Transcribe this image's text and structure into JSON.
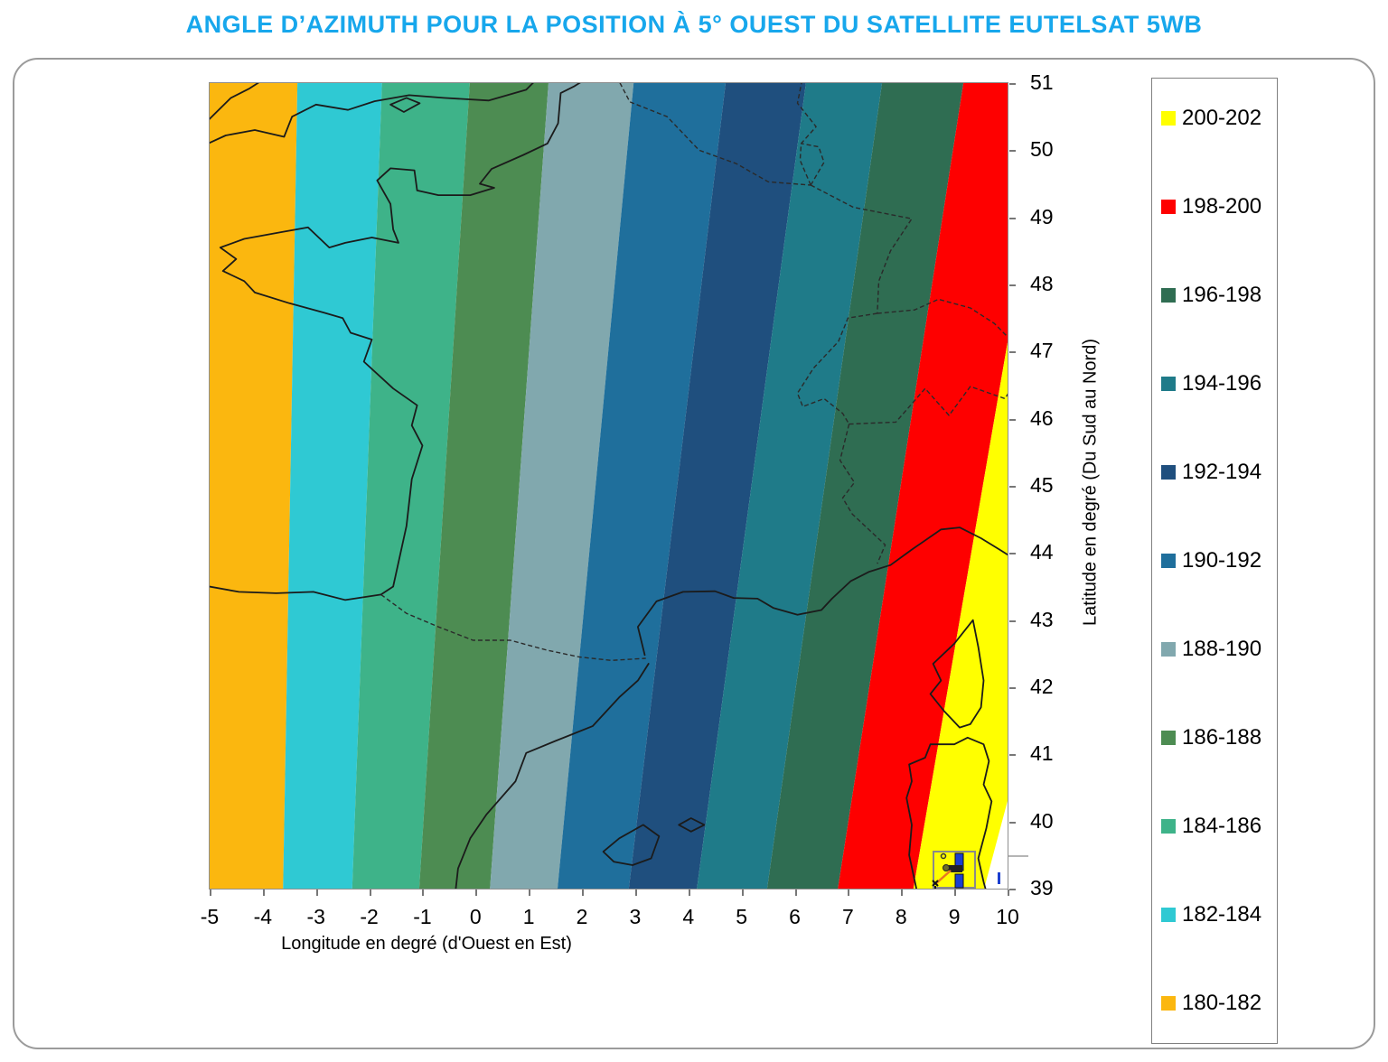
{
  "title": "ANGLE D’AZIMUTH POUR LA POSITION À 5° OUEST DU SATELLITE EUTELSAT 5WB",
  "title_color": "#17A7EC",
  "chart_data": {
    "type": "heatmap",
    "subtype": "filled-contour-map-over-france",
    "title": "ANGLE D’AZIMUTH POUR LA POSITION À 5° OUEST DU SATELLITE EUTELSAT 5WB",
    "xlabel": "Longitude en degré (d'Ouest en Est)",
    "ylabel": "Latitude en degré (Du Sud au Nord)",
    "xlim": [
      -5,
      10
    ],
    "ylim": [
      39,
      51
    ],
    "xticks": [
      -5,
      -4,
      -3,
      -2,
      -1,
      0,
      1,
      2,
      3,
      4,
      5,
      6,
      7,
      8,
      9,
      10
    ],
    "yticks": [
      39,
      40,
      41,
      42,
      43,
      44,
      45,
      46,
      47,
      48,
      49,
      50,
      51
    ],
    "grid": false,
    "legend_position": "right",
    "legend": [
      {
        "label": "200-202",
        "color": "#FFFF00"
      },
      {
        "label": "198-200",
        "color": "#FE0000"
      },
      {
        "label": "196-198",
        "color": "#2F6D52"
      },
      {
        "label": "194-196",
        "color": "#1F7B89"
      },
      {
        "label": "192-194",
        "color": "#1F4F7E"
      },
      {
        "label": "190-192",
        "color": "#1F6F9C"
      },
      {
        "label": "188-190",
        "color": "#81A8AE"
      },
      {
        "label": "186-188",
        "color": "#4D8C52"
      },
      {
        "label": "184-186",
        "color": "#3EB389"
      },
      {
        "label": "182-184",
        "color": "#2FC9D3"
      },
      {
        "label": "180-182",
        "color": "#FBB70F"
      }
    ],
    "bands": [
      {
        "range": "180-182",
        "color": "#FBB70F"
      },
      {
        "range": "182-184",
        "color": "#2FC9D3"
      },
      {
        "range": "184-186",
        "color": "#3EB389"
      },
      {
        "range": "186-188",
        "color": "#4D8C52"
      },
      {
        "range": "188-190",
        "color": "#81A8AE"
      },
      {
        "range": "190-192",
        "color": "#1F6F9C"
      },
      {
        "range": "192-194",
        "color": "#1F4F7E"
      },
      {
        "range": "194-196",
        "color": "#1F7B89"
      },
      {
        "range": "196-198",
        "color": "#2F6D52"
      },
      {
        "range": "198-200",
        "color": "#FE0000"
      },
      {
        "range": "200-202",
        "color": "#FFFF00"
      }
    ],
    "contours": [
      {
        "azimuth": 182,
        "lon_at_lat51": -3.35,
        "lon_at_lat39": -3.62
      },
      {
        "azimuth": 184,
        "lon_at_lat51": -1.76,
        "lon_at_lat39": -2.32
      },
      {
        "azimuth": 186,
        "lon_at_lat51": -0.11,
        "lon_at_lat39": -1.06
      },
      {
        "azimuth": 188,
        "lon_at_lat51": 1.37,
        "lon_at_lat39": 0.27
      },
      {
        "azimuth": 190,
        "lon_at_lat51": 2.97,
        "lon_at_lat39": 1.54
      },
      {
        "azimuth": 192,
        "lon_at_lat51": 4.7,
        "lon_at_lat39": 2.88
      },
      {
        "azimuth": 194,
        "lon_at_lat51": 6.21,
        "lon_at_lat39": 4.16
      },
      {
        "azimuth": 196,
        "lon_at_lat51": 7.64,
        "lon_at_lat39": 5.48
      },
      {
        "azimuth": 198,
        "lon_at_lat51": 9.17,
        "lon_at_lat39": 6.81
      },
      {
        "azimuth": 200,
        "lon_at_lat51": 10.84,
        "lon_at_lat39": 8.23
      },
      {
        "azimuth": 202,
        "lon_at_lat51": 13.6,
        "lon_at_lat39": 9.56
      }
    ]
  }
}
